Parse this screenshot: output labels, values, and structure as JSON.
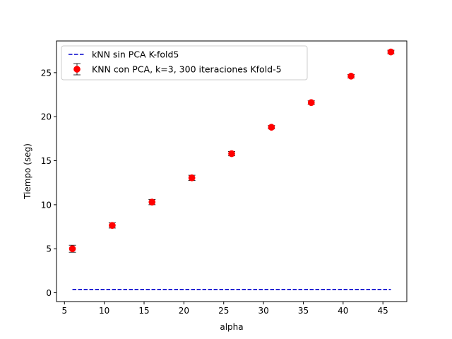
{
  "chart_data": {
    "type": "scatter",
    "xlabel": "alpha",
    "ylabel": "Tiempo (seg)",
    "xlim": [
      4.0,
      48.0
    ],
    "ylim": [
      -1.0,
      28.6
    ],
    "xticks": [
      5,
      10,
      15,
      20,
      25,
      30,
      35,
      40,
      45
    ],
    "yticks": [
      0,
      5,
      10,
      15,
      20,
      25
    ],
    "legend_position": "upper-left",
    "grid": false,
    "series": [
      {
        "name": "kNN sin PCA K-fold5",
        "kind": "line",
        "style": "dashed",
        "color": "#0000cc",
        "x": [
          6,
          46
        ],
        "y": [
          0.38,
          0.38
        ]
      },
      {
        "name": "KNN con PCA, k=3, 300 iteraciones Kfold-5",
        "kind": "errorbar",
        "marker": "circle",
        "color": "#ff0000",
        "errcolor": "#000000",
        "x": [
          6,
          11,
          16,
          21,
          26,
          31,
          36,
          41,
          46
        ],
        "y": [
          5.0,
          7.65,
          10.3,
          13.05,
          15.8,
          18.8,
          21.6,
          24.6,
          27.35
        ],
        "yerr": [
          0.4,
          0.3,
          0.3,
          0.3,
          0.25,
          0.2,
          0.2,
          0.2,
          0.2
        ]
      }
    ]
  }
}
